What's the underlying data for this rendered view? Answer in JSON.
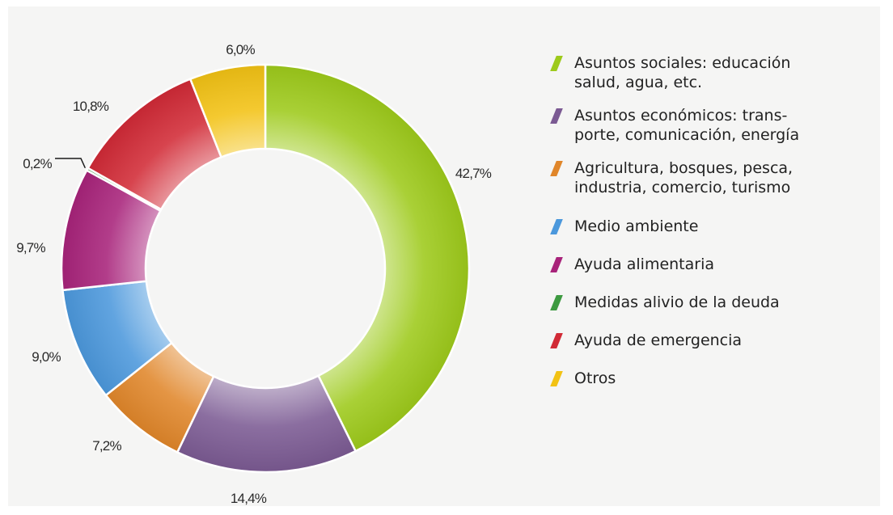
{
  "colors": {
    "background": "#f5f5f4"
  },
  "chart_data": {
    "type": "pie",
    "variant": "donut",
    "start": "top",
    "direction": "clockwise",
    "legend_position": "right",
    "slices": [
      {
        "value": 42.7,
        "label": "42,7%",
        "name": "Asuntos sociales: educación salud, agua, etc.",
        "color": "#9dca1b",
        "legend_lines": [
          "Asuntos sociales: educación",
          "salud, agua, etc."
        ]
      },
      {
        "value": 14.4,
        "label": "14,4%",
        "name": "Asuntos económicos: transporte, comunicación, energía",
        "color": "#7b5a93",
        "legend_lines": [
          "Asuntos económicos: trans-",
          "porte, comunicación, energía"
        ]
      },
      {
        "value": 7.2,
        "label": "7,2%",
        "name": "Agricultura, bosques, pesca, industria, comercio, turismo",
        "color": "#e0862a",
        "legend_lines": [
          "Agricultura, bosques, pesca,",
          "industria, comercio, turismo"
        ]
      },
      {
        "value": 9.0,
        "label": "9,0%",
        "name": "Medio ambiente",
        "color": "#4b98dc",
        "legend_lines": [
          "Medio ambiente"
        ]
      },
      {
        "value": 9.7,
        "label": "9,7%",
        "name": "Ayuda alimentaria",
        "color": "#a8237a",
        "legend_lines": [
          "Ayuda alimentaria"
        ]
      },
      {
        "value": 0.2,
        "label": "0,2%",
        "name": "Medidas alivio de la deuda",
        "color": "#3d9a40",
        "legend_lines": [
          "Medidas alivio de la deuda"
        ]
      },
      {
        "value": 10.8,
        "label": "10,8%",
        "name": "Ayuda de emergencia",
        "color": "#d12a36",
        "legend_lines": [
          "Ayuda de emergencia"
        ]
      },
      {
        "value": 6.0,
        "label": "6,0%",
        "name": "Otros",
        "color": "#f2c214",
        "legend_lines": [
          "Otros"
        ]
      }
    ]
  }
}
